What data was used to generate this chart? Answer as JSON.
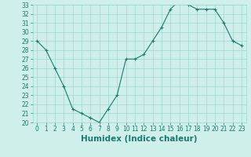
{
  "x": [
    0,
    1,
    2,
    3,
    4,
    5,
    6,
    7,
    8,
    9,
    10,
    11,
    12,
    13,
    14,
    15,
    16,
    17,
    18,
    19,
    20,
    21,
    22,
    23
  ],
  "y": [
    29.0,
    28.0,
    26.0,
    24.0,
    21.5,
    21.0,
    20.5,
    20.0,
    21.5,
    23.0,
    27.0,
    27.0,
    27.5,
    29.0,
    30.5,
    32.5,
    33.5,
    33.0,
    32.5,
    32.5,
    32.5,
    31.0,
    29.0,
    28.5
  ],
  "xlabel": "Humidex (Indice chaleur)",
  "ylim": [
    20,
    33
  ],
  "xlim": [
    -0.5,
    23.5
  ],
  "yticks": [
    20,
    21,
    22,
    23,
    24,
    25,
    26,
    27,
    28,
    29,
    30,
    31,
    32,
    33
  ],
  "xticks": [
    0,
    1,
    2,
    3,
    4,
    5,
    6,
    7,
    8,
    9,
    10,
    11,
    12,
    13,
    14,
    15,
    16,
    17,
    18,
    19,
    20,
    21,
    22,
    23
  ],
  "line_color": "#1a7a6e",
  "marker": "+",
  "bg_color": "#cff0ea",
  "grid_color": "#9dd8cf",
  "label_color": "#1a7a6e",
  "tick_font_size": 5.5,
  "xlabel_font_size": 7.5
}
